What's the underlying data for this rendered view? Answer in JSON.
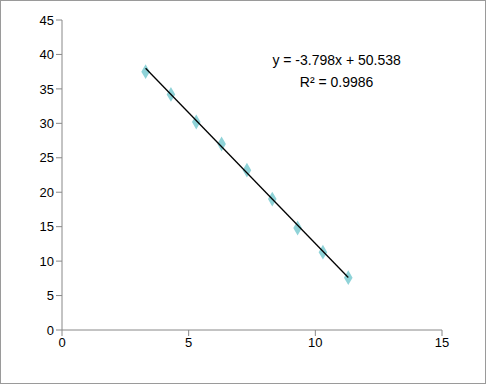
{
  "chart_data": {
    "type": "scatter",
    "annotations": [
      "y = -3.798x + 50.538",
      "R² = 0.9986"
    ],
    "xlim": [
      0,
      15
    ],
    "xticks": [
      0,
      5,
      10,
      15
    ],
    "ylim": [
      0,
      45
    ],
    "yticks": [
      0,
      5,
      10,
      15,
      20,
      25,
      30,
      35,
      40,
      45
    ],
    "grid": false,
    "series": [
      {
        "type": "scatter",
        "color": "#8fd3d8",
        "marker": "diamond",
        "x": [
          3.3,
          4.3,
          5.3,
          6.3,
          7.3,
          8.3,
          9.3,
          10.3,
          11.3
        ],
        "values": [
          37.5,
          34.2,
          30.2,
          27.0,
          23.2,
          19.0,
          14.8,
          11.3,
          7.6
        ]
      },
      {
        "type": "line",
        "color": "#000000",
        "line_style": "solid",
        "x": [
          3.3,
          11.3
        ],
        "values": [
          38.0,
          7.62
        ]
      }
    ]
  }
}
